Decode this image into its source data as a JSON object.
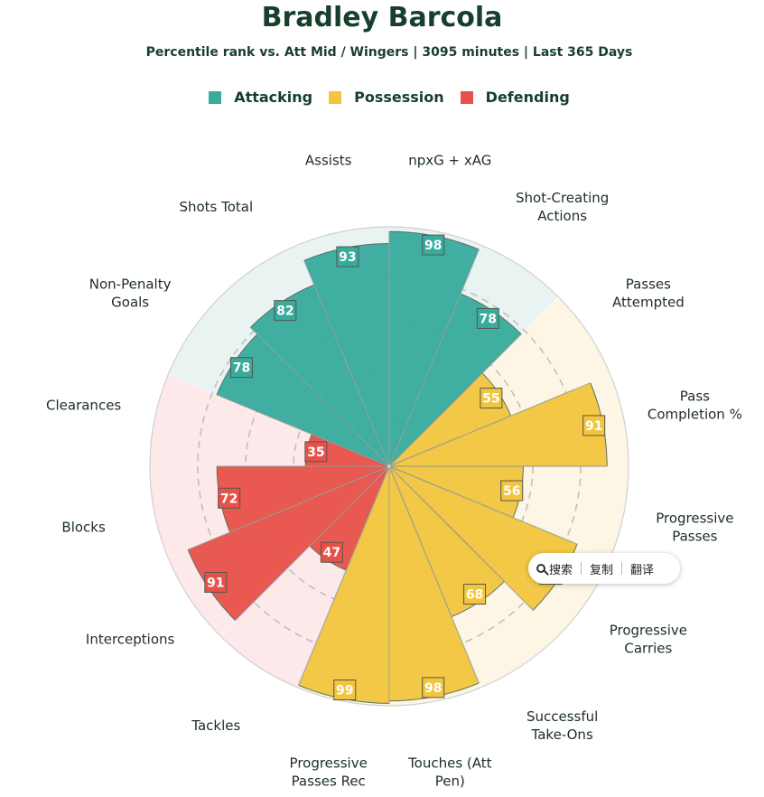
{
  "title": "Bradley Barcola",
  "subtitle": "Percentile rank vs. Att Mid / Wingers | 3095 minutes | Last 365 Days",
  "legend": [
    {
      "name": "Attacking",
      "color": "#37ab9c"
    },
    {
      "name": "Possession",
      "color": "#f2c53d"
    },
    {
      "name": "Defending",
      "color": "#e8514a"
    }
  ],
  "chart_data": {
    "type": "pie",
    "subtype": "polar-bar",
    "rlim": [
      0,
      100
    ],
    "categories": [
      {
        "label": "npxG + xAG",
        "value": 98,
        "group": "Attacking"
      },
      {
        "label": "Shot-Creating\nActions",
        "value": 78,
        "group": "Attacking"
      },
      {
        "label": "Passes\nAttempted",
        "value": 55,
        "group": "Possession"
      },
      {
        "label": "Pass\nCompletion %",
        "value": 91,
        "group": "Possession"
      },
      {
        "label": "Progressive\nPasses",
        "value": 56,
        "group": "Possession"
      },
      {
        "label": "Progressive\nCarries",
        "value": 85,
        "group": "Possession"
      },
      {
        "label": "Successful\nTake-Ons",
        "value": 68,
        "group": "Possession"
      },
      {
        "label": "Touches (Att\nPen)",
        "value": 98,
        "group": "Possession"
      },
      {
        "label": "Progressive\nPasses Rec",
        "value": 99,
        "group": "Possession"
      },
      {
        "label": "Tackles",
        "value": 47,
        "group": "Defending"
      },
      {
        "label": "Interceptions",
        "value": 91,
        "group": "Defending"
      },
      {
        "label": "Blocks",
        "value": 72,
        "group": "Defending"
      },
      {
        "label": "Clearances",
        "value": 35,
        "group": "Defending"
      },
      {
        "label": "Non-Penalty\nGoals",
        "value": 78,
        "group": "Attacking"
      },
      {
        "label": "Shots Total",
        "value": 82,
        "group": "Attacking"
      },
      {
        "label": "Assists",
        "value": 93,
        "group": "Attacking"
      }
    ]
  },
  "popup": {
    "icon": "search-icon",
    "items": [
      "搜索",
      "复制",
      "翻译"
    ]
  }
}
